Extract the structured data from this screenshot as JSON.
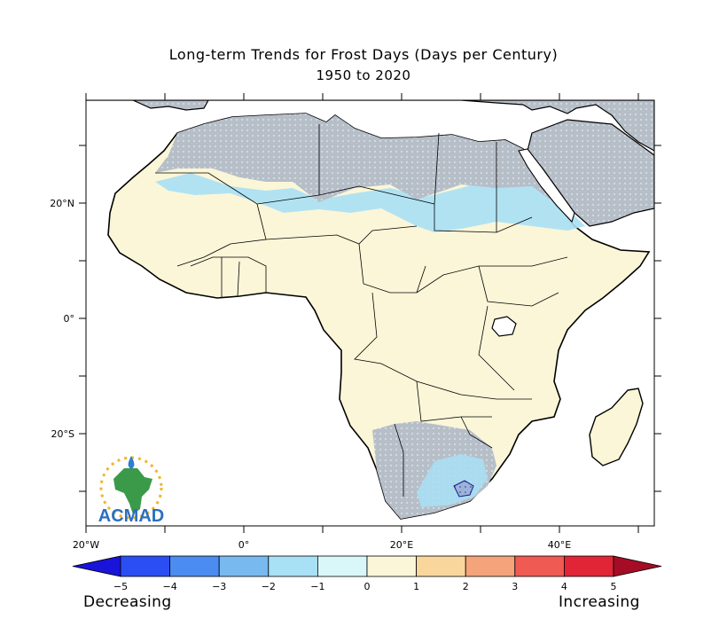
{
  "title": "Long-term Trends for Frost Days (Days per Century)",
  "subtitle": "1950 to 2020",
  "axes": {
    "lon_labels": [
      "20°W",
      "0°",
      "20°E",
      "40°E"
    ],
    "lat_labels": [
      "20°N",
      "0°",
      "20°S"
    ]
  },
  "colorbar": {
    "ticks": [
      "−5",
      "−4",
      "−3",
      "−2",
      "−1",
      "0",
      "1",
      "2",
      "3",
      "4",
      "5"
    ],
    "colors": [
      "#1a13d9",
      "#2b4ef2",
      "#4a8cf0",
      "#78b9ef",
      "#a8e0f5",
      "#d9f7f9",
      "#fbf6d8",
      "#f9d79c",
      "#f5a37a",
      "#ef5a52",
      "#e12536",
      "#a50d26"
    ],
    "left_text": "Decreasing",
    "right_text": "Increasing"
  },
  "logo": {
    "text": "ACMAD"
  },
  "map_colors": {
    "land": "#fbf6d8",
    "ocean": "#ffffff",
    "light_blue": "#a8e0f5",
    "mid_blue": "#78b9ef",
    "stipple_gray": "#b4bcc6"
  }
}
